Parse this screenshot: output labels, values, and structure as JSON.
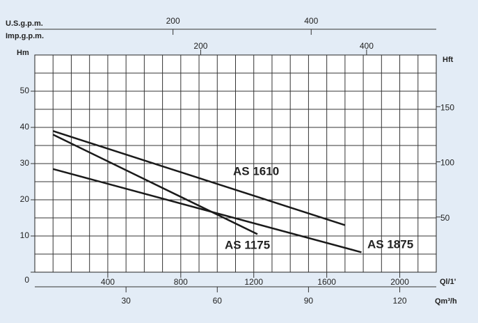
{
  "chart_data": {
    "type": "line",
    "y_label": "Hm",
    "y2_label": "Hft",
    "x_label": "Ql/1'",
    "x2_label": "Qm³/h",
    "top_label": "U.S.g.p.m.",
    "top2_label": "Imp.g.p.m.",
    "xlim": [
      0,
      2200
    ],
    "xticks": [
      400,
      800,
      1200,
      1600,
      2000
    ],
    "ylim": [
      0,
      60
    ],
    "yticks": [
      0,
      10,
      20,
      30,
      40,
      50
    ],
    "y2lim": [
      0,
      196.85
    ],
    "y2ticks": [
      50,
      100,
      150
    ],
    "x2lim": [
      0,
      132
    ],
    "x2ticks": [
      30,
      60,
      90,
      120
    ],
    "toplim": [
      0,
      581
    ],
    "topticks": [
      200,
      400
    ],
    "top2lim": [
      0,
      484
    ],
    "top2ticks": [
      200,
      400
    ],
    "xgrid": [
      100,
      200,
      300,
      400,
      500,
      600,
      700,
      800,
      900,
      1000,
      1100,
      1200,
      1300,
      1400,
      1500,
      1600,
      1700,
      1800,
      1900,
      2000,
      2100
    ],
    "ygrid": [
      5,
      10,
      15,
      20,
      25,
      30,
      35,
      40,
      45,
      50,
      55
    ],
    "color": "#1a1a1a",
    "series": [
      {
        "name": "AS 1610",
        "x": [
          100,
          1700
        ],
        "values": [
          39,
          13
        ]
      },
      {
        "name": "AS 1175",
        "x": [
          100,
          1220
        ],
        "values": [
          38,
          10.5
        ]
      },
      {
        "name": "AS 1875",
        "x": [
          100,
          1790
        ],
        "values": [
          28.5,
          5.5
        ]
      }
    ]
  }
}
